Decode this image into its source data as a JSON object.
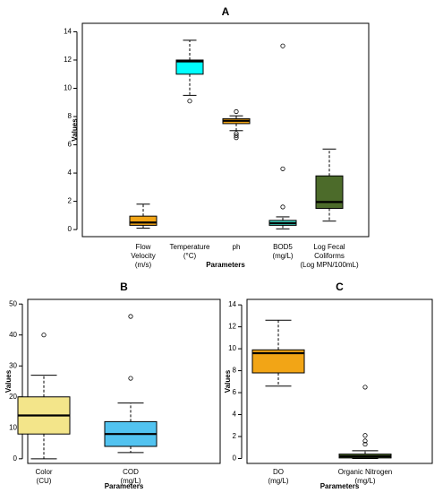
{
  "chart_data": [
    {
      "type": "boxplot",
      "title": "A",
      "ylabel": "Values",
      "xlabel": "Parameters",
      "ylim": [
        -0.5,
        14.6
      ],
      "yticks": [
        0,
        2,
        4,
        6,
        8,
        10,
        12,
        14
      ],
      "grid": false,
      "boxes": [
        {
          "label": [
            "Flow",
            "Velocity",
            "(m/s)"
          ],
          "color": "#f2a516",
          "min": 0.1,
          "q1": 0.3,
          "median": 0.5,
          "q3": 0.95,
          "max": 1.8,
          "outliers": []
        },
        {
          "label": [
            "Temperature",
            "(°C)"
          ],
          "color": "#00ffff",
          "min": 9.5,
          "q1": 11.0,
          "median": 11.9,
          "q3": 12.0,
          "max": 13.4,
          "outliers": [
            9.1
          ]
        },
        {
          "label": [
            "ph"
          ],
          "color": "#f2a516",
          "min": 7.0,
          "q1": 7.5,
          "median": 7.7,
          "q3": 7.85,
          "max": 8.05,
          "outliers": [
            6.5,
            6.65,
            6.8,
            8.35
          ]
        },
        {
          "label": [
            "BOD5",
            "(mg/L)"
          ],
          "color": "#3dd4c1",
          "min": 0.05,
          "q1": 0.3,
          "median": 0.45,
          "q3": 0.65,
          "max": 0.9,
          "outliers": [
            1.6,
            4.3,
            13.0
          ]
        },
        {
          "label": [
            "Log Fecal",
            "Coliforms",
            "(Log MPN/100mL)"
          ],
          "color": "#4c6b2a",
          "min": 0.6,
          "q1": 1.5,
          "median": 1.95,
          "q3": 3.8,
          "max": 5.7,
          "outliers": []
        }
      ]
    },
    {
      "type": "boxplot",
      "title": "B",
      "ylabel": "Values",
      "xlabel": "Parameters",
      "ylim": [
        -1.5,
        51.5
      ],
      "yticks": [
        0,
        10,
        20,
        30,
        40,
        50
      ],
      "grid": false,
      "boxes": [
        {
          "label": [
            "Color",
            "(CU)"
          ],
          "color": "#f3e58a",
          "min": 0.0,
          "q1": 8.0,
          "median": 14.0,
          "q3": 20.0,
          "max": 27.0,
          "outliers": [
            40.0
          ]
        },
        {
          "label": [
            "COD",
            "(mg/L)"
          ],
          "color": "#52c3f0",
          "min": 2.0,
          "q1": 4.0,
          "median": 8.0,
          "q3": 12.0,
          "max": 18.0,
          "outliers": [
            26.0,
            46.0
          ]
        }
      ]
    },
    {
      "type": "boxplot",
      "title": "C",
      "ylabel": "Values",
      "xlabel": "Parameters",
      "ylim": [
        -0.45,
        14.5
      ],
      "yticks": [
        0,
        2,
        4,
        6,
        8,
        10,
        12,
        14
      ],
      "grid": false,
      "boxes": [
        {
          "label": [
            "DO",
            "(mg/L)"
          ],
          "color": "#f2a516",
          "min": 6.6,
          "q1": 7.8,
          "median": 9.6,
          "q3": 9.9,
          "max": 12.6,
          "outliers": []
        },
        {
          "label": [
            "Organic Nitrogen",
            "(mg/L)"
          ],
          "color": "#4c6b2a",
          "min": 0.0,
          "q1": 0.05,
          "median": 0.2,
          "q3": 0.4,
          "max": 0.7,
          "outliers": [
            1.3,
            1.6,
            2.1,
            6.5
          ]
        }
      ]
    }
  ]
}
